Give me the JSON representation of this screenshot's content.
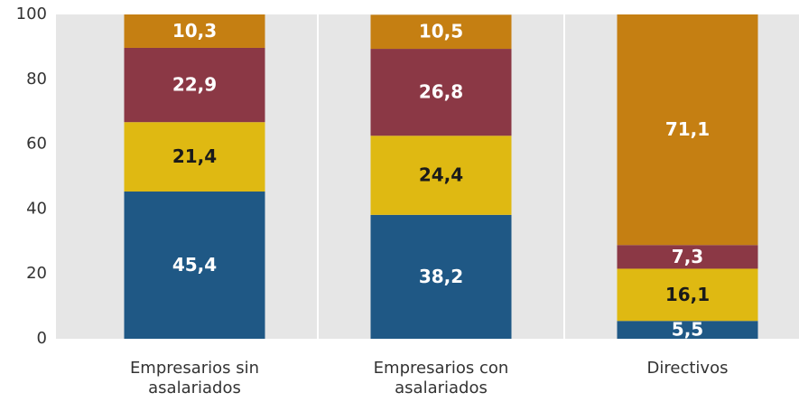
{
  "chart_data": {
    "type": "stacked_bar",
    "categories": [
      "Empresarios sin asalariados",
      "Empresarios con asalariados",
      "Directivos"
    ],
    "series": [
      {
        "color": "#1f5885",
        "label_color": "#ffffff",
        "values": [
          45.4,
          38.2,
          5.5
        ],
        "value_labels": [
          "45,4",
          "38,2",
          "5,5"
        ]
      },
      {
        "color": "#dfb912",
        "label_color": "#1a1a1a",
        "values": [
          21.4,
          24.4,
          16.1
        ],
        "value_labels": [
          "21,4",
          "24,4",
          "16,1"
        ]
      },
      {
        "color": "#8b3845",
        "label_color": "#ffffff",
        "values": [
          22.9,
          26.8,
          7.3
        ],
        "value_labels": [
          "22,9",
          "26,8",
          "7,3"
        ]
      },
      {
        "color": "#c57f12",
        "label_color": "#ffffff",
        "values": [
          10.3,
          10.5,
          71.1
        ],
        "value_labels": [
          "10,3",
          "10,5",
          "71,1"
        ]
      }
    ],
    "ylim": [
      0,
      100
    ],
    "yticks": [
      0,
      20,
      40,
      60,
      80,
      100
    ],
    "grid": false
  }
}
